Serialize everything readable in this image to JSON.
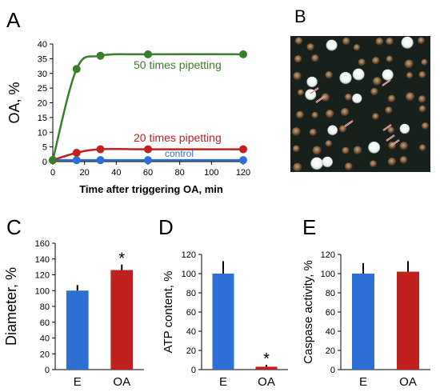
{
  "panel_labels": {
    "a": "A",
    "b": "B",
    "c": "C",
    "d": "D",
    "e": "E"
  },
  "colors": {
    "green": "#3a7d2a",
    "red": "#c0201e",
    "blue": "#2e6fd6",
    "axis": "#000000",
    "photo_bg": "#18201c"
  },
  "photo": {
    "description_icon": "micrograph-image"
  },
  "chart_data": [
    {
      "panel": "A",
      "type": "line",
      "xlabel": "Time after triggering OA, min",
      "ylabel": "OA, %",
      "xlim": [
        0,
        120
      ],
      "ylim": [
        0,
        40
      ],
      "xticks": [
        "0",
        "20",
        "40",
        "60",
        "80",
        "100",
        "120"
      ],
      "yticks": [
        "0",
        "5",
        "10",
        "15",
        "20",
        "25",
        "30",
        "35",
        "40"
      ],
      "series": [
        {
          "name": "50 times pipetting",
          "color": "#3a7d2a",
          "x": [
            0,
            15,
            30,
            60,
            120
          ],
          "y": [
            0.5,
            31.5,
            36,
            36.5,
            36.5
          ]
        },
        {
          "name": "20 times pipetting",
          "color": "#c0201e",
          "x": [
            0,
            15,
            30,
            60,
            120
          ],
          "y": [
            0.5,
            3,
            4.2,
            4.2,
            4.2
          ]
        },
        {
          "name": "control",
          "color": "#2e6fd6",
          "x": [
            0,
            15,
            30,
            60,
            120
          ],
          "y": [
            0.5,
            0.5,
            0.5,
            0.5,
            0.5
          ]
        }
      ]
    },
    {
      "panel": "C",
      "type": "bar",
      "categories": [
        "E",
        "OA"
      ],
      "values": [
        100,
        126
      ],
      "errors": [
        7,
        7
      ],
      "colors": [
        "#2e6fd6",
        "#c0201e"
      ],
      "significance": [
        "",
        "*"
      ],
      "ylabel": "Diameter, %",
      "ylim": [
        0,
        160
      ],
      "yticks": [
        "0",
        "20",
        "40",
        "60",
        "80",
        "100",
        "120",
        "140",
        "160"
      ]
    },
    {
      "panel": "D",
      "type": "bar",
      "categories": [
        "E",
        "OA"
      ],
      "values": [
        100,
        3
      ],
      "errors": [
        13,
        2
      ],
      "colors": [
        "#2e6fd6",
        "#c0201e"
      ],
      "significance": [
        "",
        "*"
      ],
      "ylabel": "ATP content, %",
      "ylim": [
        0,
        120
      ],
      "yticks": [
        "0",
        "20",
        "40",
        "60",
        "80",
        "100",
        "120"
      ]
    },
    {
      "panel": "E",
      "type": "bar",
      "categories": [
        "E",
        "OA"
      ],
      "values": [
        100,
        102
      ],
      "errors": [
        11,
        11
      ],
      "colors": [
        "#2e6fd6",
        "#c0201e"
      ],
      "significance": [
        "",
        ""
      ],
      "ylabel": "Caspase activity, %",
      "ylim": [
        0,
        120
      ],
      "yticks": [
        "0",
        "20",
        "40",
        "60",
        "80",
        "100",
        "120"
      ]
    }
  ]
}
